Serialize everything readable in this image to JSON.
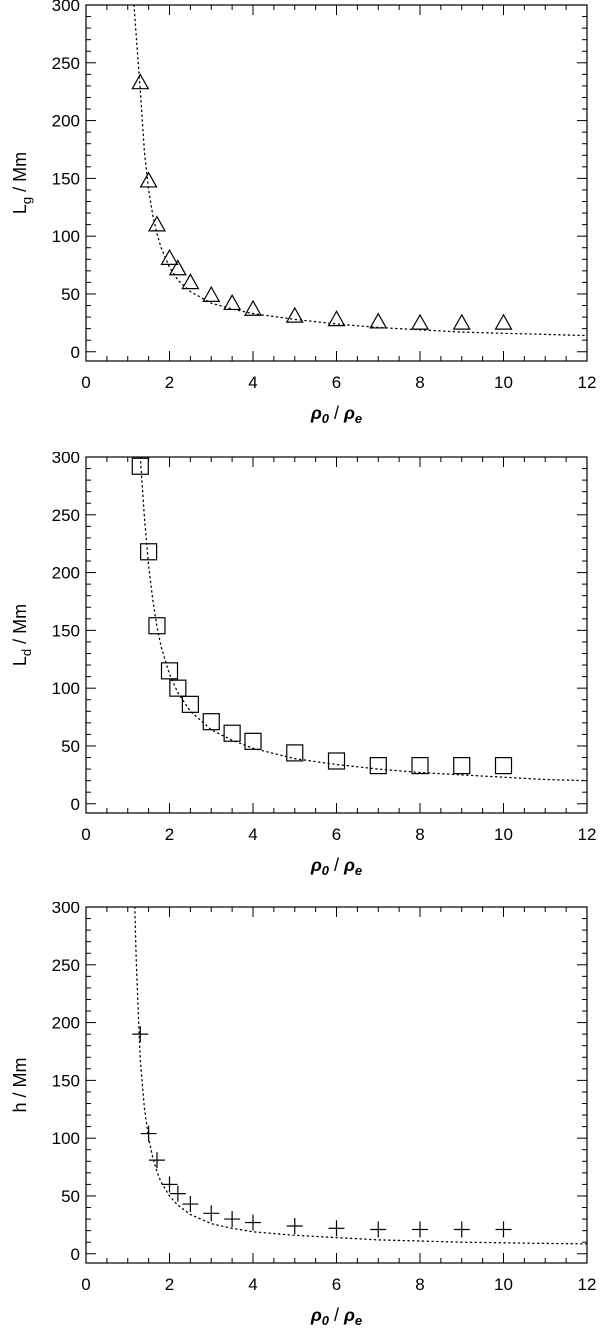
{
  "chart_data": [
    {
      "type": "scatter",
      "xlabel": {
        "main": "ρ",
        "sub0": "0",
        "sep": " / ",
        "main2": "ρ",
        "sub1": "e"
      },
      "ylabel": {
        "main": "L",
        "sub": "g",
        "rest": " / Mm"
      },
      "xlim": [
        0,
        12
      ],
      "ylim": [
        -8,
        300
      ],
      "xticks": [
        0,
        2,
        4,
        6,
        8,
        10,
        12
      ],
      "yticks": [
        0,
        50,
        100,
        150,
        200,
        250,
        300
      ],
      "marker": "triangle",
      "series": [
        {
          "style": "markers",
          "x": [
            1.3,
            1.5,
            1.7,
            2.0,
            2.2,
            2.5,
            3.0,
            3.5,
            4.0,
            5.0,
            6.0,
            7.0,
            8.0,
            9.0,
            10.0
          ],
          "y": [
            233,
            148,
            110,
            81,
            72,
            60,
            49,
            42,
            37,
            31,
            28,
            26,
            25,
            25,
            25
          ]
        },
        {
          "style": "dotted-curve",
          "x": [
            1.15,
            1.2,
            1.3,
            1.4,
            1.5,
            1.6,
            1.7,
            1.8,
            2.0,
            2.2,
            2.5,
            3.0,
            3.5,
            4.0,
            5.0,
            6.0,
            7.0,
            8.0,
            9.0,
            10.0,
            11.0,
            12.0
          ],
          "y": [
            300,
            275,
            226,
            173,
            140,
            118,
            102,
            90,
            73,
            62,
            52,
            42,
            37,
            33,
            28,
            24,
            21,
            19,
            17,
            16,
            15,
            14
          ]
        }
      ],
      "grid": false
    },
    {
      "type": "scatter",
      "xlabel": {
        "main": "ρ",
        "sub0": "0",
        "sep": " / ",
        "main2": "ρ",
        "sub1": "e"
      },
      "ylabel": {
        "main": "L",
        "sub": "d",
        "rest": " / Mm"
      },
      "xlim": [
        0,
        12
      ],
      "ylim": [
        -8,
        300
      ],
      "xticks": [
        0,
        2,
        4,
        6,
        8,
        10,
        12
      ],
      "yticks": [
        0,
        50,
        100,
        150,
        200,
        250,
        300
      ],
      "marker": "square",
      "series": [
        {
          "style": "markers",
          "x": [
            1.3,
            1.5,
            1.7,
            2.0,
            2.2,
            2.5,
            3.0,
            3.5,
            4.0,
            5.0,
            6.0,
            7.0,
            8.0,
            9.0,
            10.0
          ],
          "y": [
            292,
            218,
            154,
            115,
            100,
            86,
            71,
            61,
            54,
            44,
            37,
            33,
            33,
            33,
            33
          ]
        },
        {
          "style": "dotted-curve",
          "x": [
            1.3,
            1.4,
            1.5,
            1.6,
            1.7,
            1.8,
            2.0,
            2.2,
            2.5,
            3.0,
            3.5,
            4.0,
            5.0,
            6.0,
            7.0,
            8.0,
            9.0,
            10.0,
            11.0,
            12.0
          ],
          "y": [
            300,
            248,
            206,
            176,
            153,
            136,
            112,
            96,
            80,
            64,
            55,
            48,
            39,
            34,
            30,
            27,
            25,
            23,
            21,
            20
          ]
        }
      ],
      "grid": false
    },
    {
      "type": "scatter",
      "xlabel": {
        "main": "ρ",
        "sub0": "0",
        "sep": " / ",
        "main2": "ρ",
        "sub1": "e"
      },
      "ylabel": {
        "main": "h",
        "sub": "",
        "rest": " / Mm"
      },
      "xlim": [
        0,
        12
      ],
      "ylim": [
        -8,
        300
      ],
      "xticks": [
        0,
        2,
        4,
        6,
        8,
        10,
        12
      ],
      "yticks": [
        0,
        50,
        100,
        150,
        200,
        250,
        300
      ],
      "marker": "plus",
      "series": [
        {
          "style": "markers",
          "x": [
            1.3,
            1.5,
            1.7,
            2.0,
            2.2,
            2.5,
            3.0,
            3.5,
            4.0,
            5.0,
            6.0,
            7.0,
            8.0,
            9.0,
            10.0
          ],
          "y": [
            190,
            104,
            81,
            60,
            52,
            43,
            35,
            30,
            27,
            24,
            22,
            21,
            21,
            21,
            21
          ]
        },
        {
          "style": "dotted-curve",
          "x": [
            1.17,
            1.2,
            1.25,
            1.3,
            1.4,
            1.5,
            1.6,
            1.7,
            1.8,
            2.0,
            2.2,
            2.5,
            3.0,
            3.5,
            4.0,
            5.0,
            6.0,
            7.0,
            8.0,
            9.0,
            10.0,
            11.0,
            12.0
          ],
          "y": [
            300,
            258,
            210,
            168,
            126,
            100,
            83,
            71,
            62,
            50,
            42,
            34,
            26,
            22,
            19,
            16,
            14,
            12,
            11,
            10,
            9.5,
            9,
            8.5
          ]
        }
      ],
      "grid": false
    }
  ]
}
